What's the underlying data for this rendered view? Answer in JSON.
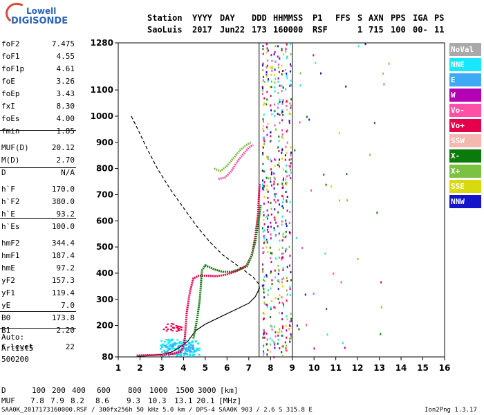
{
  "logo": {
    "line1": "Lowell",
    "line2": "DIGISONDE"
  },
  "header": {
    "row1": [
      "Station",
      "YYYY",
      "DAY",
      "DDD",
      "HHMMSS",
      "P1",
      "FFS",
      "S",
      "AXN",
      "PPS",
      "IGA",
      "PS"
    ],
    "row2": [
      "SaoLuis",
      "2017",
      "Jun22",
      "173",
      "160000",
      "RSF",
      "1",
      "715",
      "100",
      "00-",
      "11"
    ]
  },
  "params": [
    {
      "k": "foF2",
      "v": "7.475"
    },
    {
      "k": "foF1",
      "v": "4.55"
    },
    {
      "k": "foF1p",
      "v": "4.61"
    },
    {
      "k": "foE",
      "v": "3.26"
    },
    {
      "k": "foEp",
      "v": "3.43"
    },
    {
      "k": "fxI",
      "v": "8.30"
    },
    {
      "k": "foEs",
      "v": "4.00"
    },
    {
      "k": "fmin",
      "v": "1.85"
    },
    {
      "k": "MUF(D)",
      "v": "20.12"
    },
    {
      "k": "M(D)",
      "v": "2.70"
    },
    {
      "k": "D",
      "v": "N/A"
    },
    {
      "k": "h`F",
      "v": "170.0"
    },
    {
      "k": "h`F2",
      "v": "380.0"
    },
    {
      "k": "h`E",
      "v": "93.2"
    },
    {
      "k": "h`Es",
      "v": "100.0"
    },
    {
      "k": "hmF2",
      "v": "344.4"
    },
    {
      "k": "hmF1",
      "v": "187.4"
    },
    {
      "k": "hmE",
      "v": "97.2"
    },
    {
      "k": "yF2",
      "v": "157.3"
    },
    {
      "k": "yF1",
      "v": "119.4"
    },
    {
      "k": "yE",
      "v": "7.0"
    },
    {
      "k": "B0",
      "v": "173.8"
    },
    {
      "k": "B1",
      "v": "2.20"
    },
    {
      "k": "C-level",
      "v": "22"
    }
  ],
  "auto": {
    "label": "Auto:",
    "artist": "Artist5",
    "version": "500200"
  },
  "legend": [
    {
      "label": "NoVal",
      "color": "#a9a9a9"
    },
    {
      "label": "NNE",
      "color": "#19e6ff"
    },
    {
      "label": "E",
      "color": "#3ea9f5"
    },
    {
      "label": "W",
      "color": "#b400b4"
    },
    {
      "label": "Vo-",
      "color": "#ff4fa7"
    },
    {
      "label": "Vo+",
      "color": "#e6004c"
    },
    {
      "label": "SSW",
      "color": "#f5b8b0"
    },
    {
      "label": "X-",
      "color": "#0a7a0a"
    },
    {
      "label": "X+",
      "color": "#7cc242"
    },
    {
      "label": "SSE",
      "color": "#d9d90f"
    },
    {
      "label": "NNW",
      "color": "#1414c8"
    }
  ],
  "chart_data": {
    "type": "scatter",
    "title": "",
    "xlabel": "",
    "ylabel": "",
    "xlim": [
      1,
      16
    ],
    "ylim": [
      80,
      1280
    ],
    "x_ticks": [
      1,
      2,
      3,
      4,
      5,
      6,
      7,
      8,
      9,
      10,
      11,
      12,
      13,
      14,
      15,
      16
    ],
    "y_ticks": [
      80,
      200,
      300,
      400,
      500,
      600,
      700,
      800,
      900,
      1000,
      1100,
      1280
    ],
    "grid_vertical": [
      7.475,
      9
    ],
    "curves": [
      {
        "style": "dashed",
        "color": "#000000",
        "points": [
          [
            1.6,
            1000
          ],
          [
            1.9,
            950
          ],
          [
            2.3,
            880
          ],
          [
            2.8,
            800
          ],
          [
            3.4,
            720
          ],
          [
            4.0,
            650
          ],
          [
            4.6,
            580
          ],
          [
            5.2,
            520
          ],
          [
            5.8,
            470
          ],
          [
            6.3,
            440
          ],
          [
            6.8,
            410
          ],
          [
            7.2,
            385
          ],
          [
            7.45,
            360
          ],
          [
            7.5,
            340
          ]
        ]
      },
      {
        "style": "solid",
        "color": "#000000",
        "points": [
          [
            1.85,
            82
          ],
          [
            2.5,
            85
          ],
          [
            3.0,
            90
          ],
          [
            3.4,
            97
          ],
          [
            3.8,
            115
          ],
          [
            4.2,
            140
          ],
          [
            4.55,
            180
          ],
          [
            5.0,
            205
          ],
          [
            5.5,
            225
          ],
          [
            6.0,
            245
          ],
          [
            6.5,
            265
          ],
          [
            7.0,
            285
          ],
          [
            7.3,
            310
          ],
          [
            7.45,
            335
          ],
          [
            7.475,
            344
          ]
        ]
      },
      {
        "style": "trace",
        "color": "#e6004c",
        "points": [
          [
            1.85,
            85
          ],
          [
            2.5,
            87
          ],
          [
            3.0,
            88
          ],
          [
            3.5,
            92
          ],
          [
            3.9,
            100
          ],
          [
            4.05,
            140
          ],
          [
            4.15,
            250
          ],
          [
            4.3,
            330
          ],
          [
            4.45,
            380
          ],
          [
            4.7,
            390
          ],
          [
            5.1,
            390
          ],
          [
            5.5,
            388
          ],
          [
            6.0,
            395
          ],
          [
            6.5,
            410
          ],
          [
            6.9,
            430
          ],
          [
            7.15,
            470
          ],
          [
            7.3,
            540
          ],
          [
            7.42,
            620
          ],
          [
            7.47,
            700
          ],
          [
            7.5,
            740
          ]
        ]
      },
      {
        "style": "trace",
        "color": "#0a7a0a",
        "points": [
          [
            4.45,
            150
          ],
          [
            4.55,
            190
          ],
          [
            4.65,
            240
          ],
          [
            4.75,
            300
          ],
          [
            4.85,
            410
          ],
          [
            5.0,
            430
          ],
          [
            5.4,
            415
          ],
          [
            5.8,
            405
          ],
          [
            6.2,
            405
          ],
          [
            6.6,
            415
          ],
          [
            6.9,
            425
          ],
          [
            7.1,
            460
          ],
          [
            7.3,
            520
          ],
          [
            7.45,
            600
          ],
          [
            7.55,
            660
          ]
        ]
      },
      {
        "style": "trace",
        "color": "#ff4fa7",
        "points": [
          [
            5.6,
            760
          ],
          [
            5.9,
            765
          ],
          [
            6.2,
            790
          ],
          [
            6.5,
            830
          ],
          [
            6.8,
            860
          ],
          [
            7.0,
            880
          ],
          [
            7.2,
            890
          ]
        ]
      },
      {
        "style": "trace",
        "color": "#7cc242",
        "points": [
          [
            5.4,
            800
          ],
          [
            5.7,
            790
          ],
          [
            6.0,
            810
          ],
          [
            6.3,
            840
          ],
          [
            6.6,
            870
          ],
          [
            6.9,
            890
          ],
          [
            7.1,
            900
          ]
        ]
      }
    ],
    "clusters": [
      {
        "color": "#19e6ff",
        "x": [
          2.9,
          4.7
        ],
        "y": [
          85,
          150
        ],
        "count": 160
      },
      {
        "color": "#3ea9f5",
        "x": [
          3.1,
          4.5
        ],
        "y": [
          90,
          135
        ],
        "count": 60
      },
      {
        "color": "#e6004c",
        "x": [
          3.0,
          4.0
        ],
        "y": [
          180,
          210
        ],
        "count": 25
      }
    ],
    "noise_columns": {
      "x": [
        7.6,
        9.0
      ],
      "y": [
        80,
        1280
      ]
    }
  },
  "tables": {
    "d_label": "D",
    "d_values": [
      "100",
      "200",
      "400",
      "600",
      "800",
      "1000",
      "1500",
      "3000",
      "[km]"
    ],
    "muf_label": "MUF",
    "muf_values": [
      "7.8",
      "7.9",
      "8.2",
      "8.6",
      "9.3",
      "10.3",
      "13.1",
      "20.1",
      "[MHz]"
    ]
  },
  "footer": {
    "left": "SAA0K_2017173160000.RSF / 300fx256h 50 kHz 5.0 km / DPS-4 SAA0K 903 / 2.6 S 315.8 E",
    "right": "Ion2Png 1.3.17"
  }
}
